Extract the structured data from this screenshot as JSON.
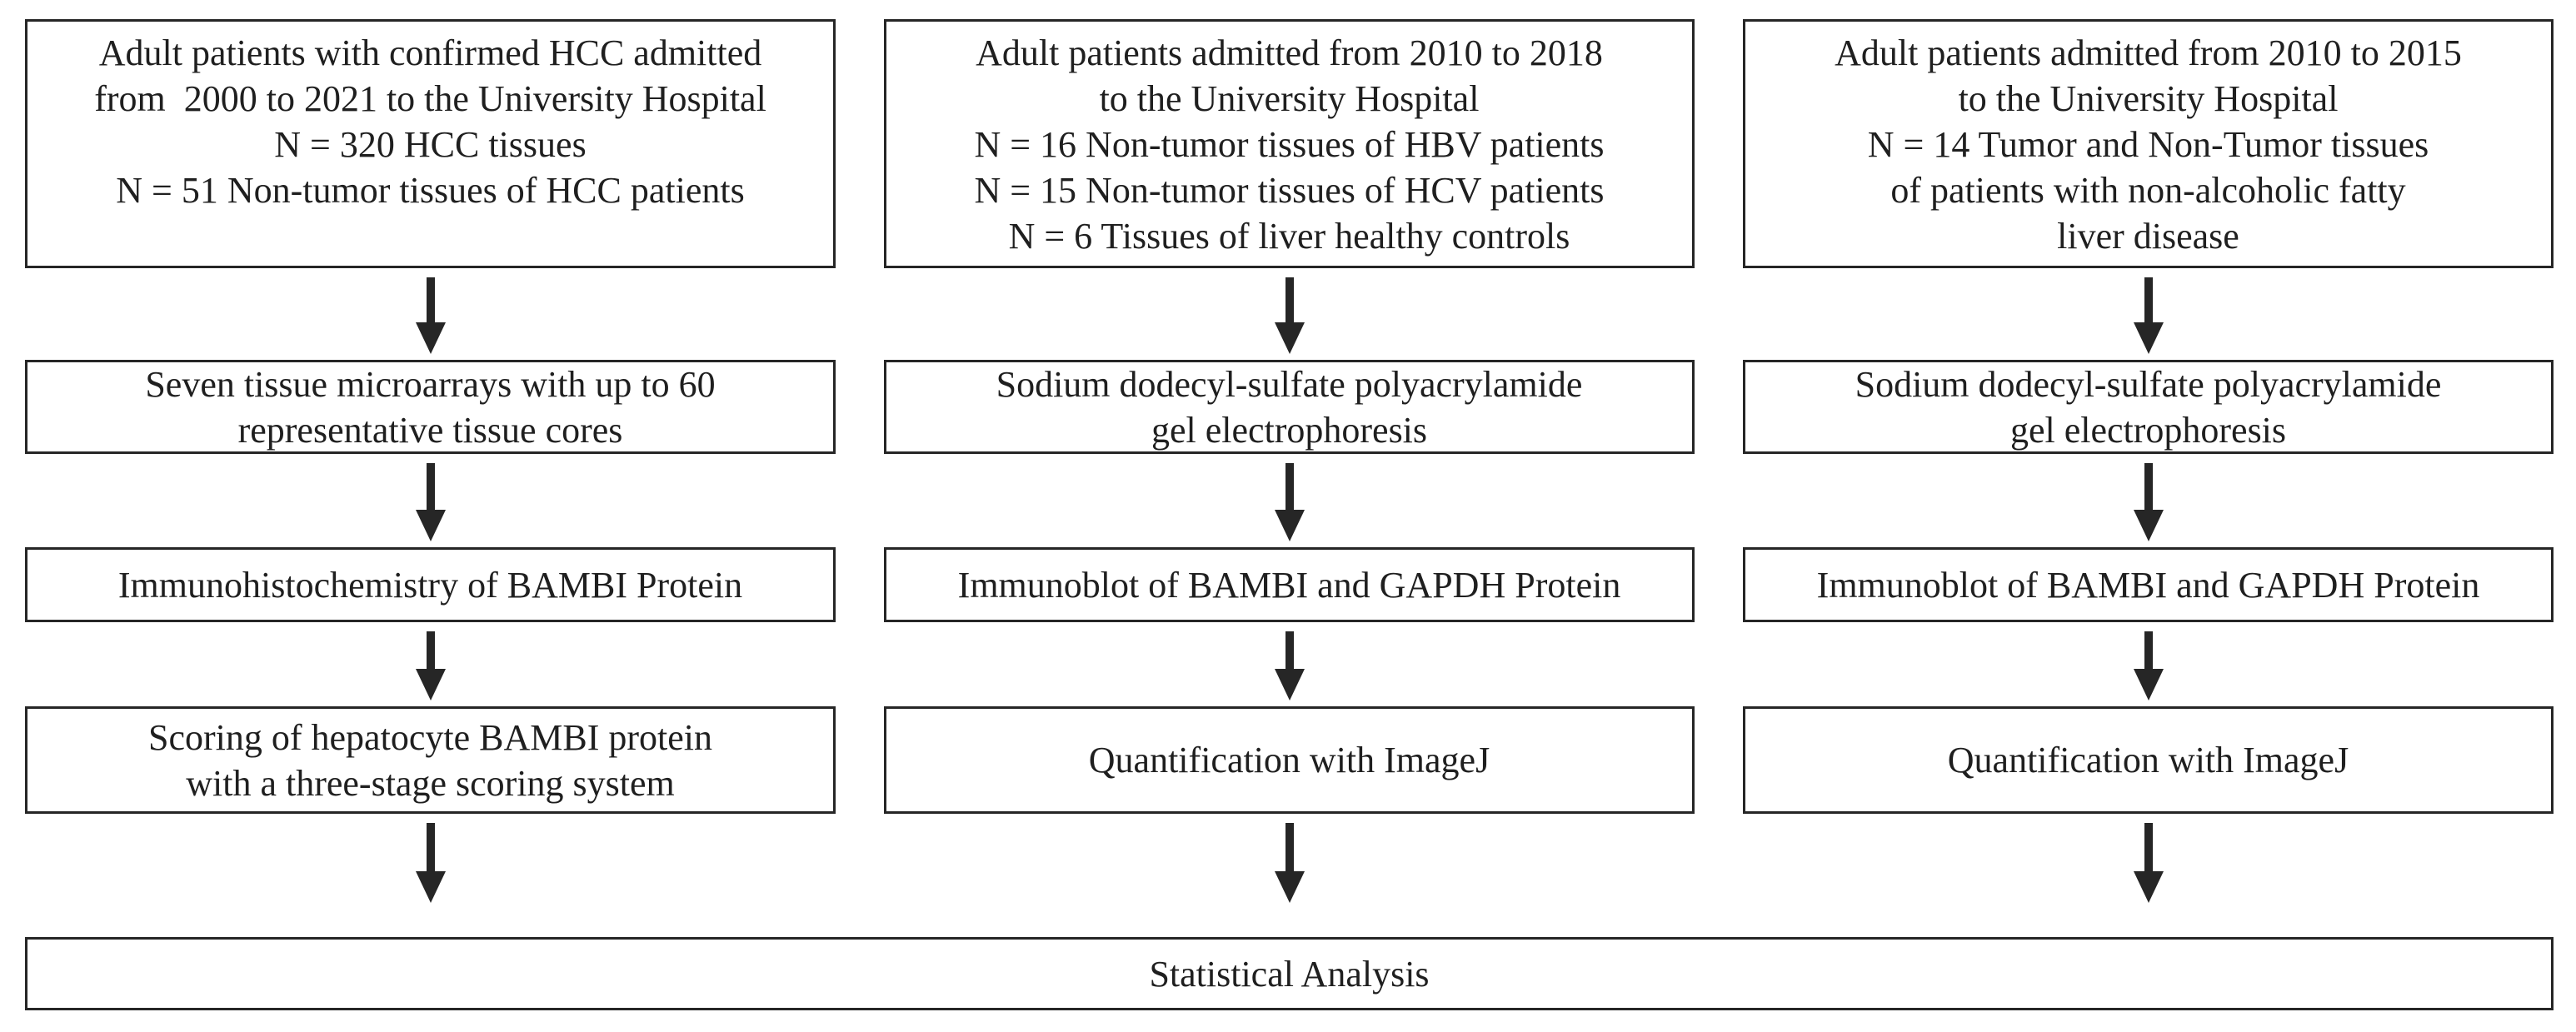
{
  "diagram": {
    "type": "flowchart",
    "colors": {
      "background": "#ffffff",
      "box_border": "#262626",
      "text": "#1f1f1f",
      "arrow": "#262626"
    },
    "columns": [
      {
        "id": "ihc-cohort",
        "boxes": [
          {
            "name": "cohort-box",
            "lines": [
              "Adult patients with confirmed HCC admitted",
              "from  2000 to 2021 to the University Hospital",
              "N = 320 HCC tissues",
              "N = 51 Non-tumor tissues of HCC patients"
            ]
          },
          {
            "name": "tissue-microarray-box",
            "lines": [
              "Seven tissue microarrays with up to 60",
              "representative tissue cores"
            ]
          },
          {
            "name": "immunohistochemistry-box",
            "lines": [
              "Immunohistochemistry of BAMBI Protein"
            ]
          },
          {
            "name": "scoring-box",
            "lines": [
              "Scoring of hepatocyte BAMBI protein",
              "with a three-stage scoring system"
            ]
          }
        ]
      },
      {
        "id": "hbv-hcv-cohort",
        "boxes": [
          {
            "name": "cohort-box",
            "lines": [
              "Adult patients admitted from 2010 to 2018",
              "to the University Hospital",
              "N = 16 Non-tumor tissues of HBV patients",
              "N = 15 Non-tumor tissues of HCV patients",
              "N = 6 Tissues of liver healthy controls"
            ]
          },
          {
            "name": "sds-page-box",
            "lines": [
              "Sodium dodecyl-sulfate polyacrylamide",
              "gel electrophoresis"
            ]
          },
          {
            "name": "immunoblot-box",
            "lines": [
              "Immunoblot of BAMBI and GAPDH Protein"
            ]
          },
          {
            "name": "quantification-box",
            "lines": [
              "Quantification with ImageJ"
            ]
          }
        ]
      },
      {
        "id": "nafld-cohort",
        "boxes": [
          {
            "name": "cohort-box",
            "lines": [
              "Adult patients admitted from 2010 to 2015",
              "to the University Hospital",
              "N = 14 Tumor and Non-Tumor tissues",
              "of patients with non-alcoholic fatty",
              "liver disease"
            ]
          },
          {
            "name": "sds-page-box",
            "lines": [
              "Sodium dodecyl-sulfate polyacrylamide",
              "gel electrophoresis"
            ]
          },
          {
            "name": "immunoblot-box",
            "lines": [
              "Immunoblot of BAMBI and GAPDH Protein"
            ]
          },
          {
            "name": "quantification-box",
            "lines": [
              "Quantification with ImageJ"
            ]
          }
        ]
      }
    ],
    "final_box": {
      "label": "Statistical Analysis"
    }
  }
}
